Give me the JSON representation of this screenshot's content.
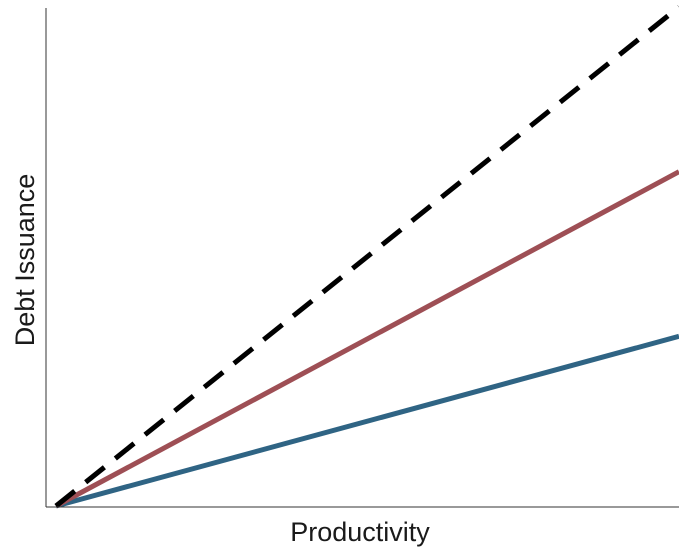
{
  "chart_data": {
    "type": "line",
    "xlabel": "Productivity",
    "ylabel": "Debt Issuance",
    "xlim": [
      0,
      1
    ],
    "ylim": [
      0,
      1
    ],
    "grid": false,
    "legend": "none",
    "x": [
      0,
      1
    ],
    "series": [
      {
        "values": [
          0,
          1.0
        ],
        "color": "#000000",
        "style": "dashed"
      },
      {
        "values": [
          0,
          0.67
        ],
        "color": "#9e4f55",
        "style": "solid"
      },
      {
        "values": [
          0,
          0.34
        ],
        "color": "#2f6484",
        "style": "solid"
      }
    ]
  }
}
